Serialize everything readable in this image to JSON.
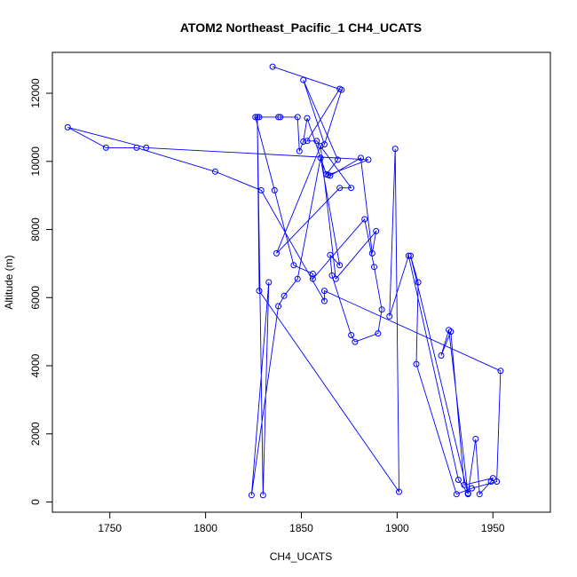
{
  "chart_data": {
    "type": "line",
    "title": "ATOM2 Northeast_Pacific_1 CH4_UCATS",
    "xlabel": "CH4_UCATS",
    "ylabel": "Altitude (m)",
    "xlim": [
      1720,
      1980
    ],
    "ylim": [
      -300,
      13200
    ],
    "x_ticks": [
      1750,
      1800,
      1850,
      1900,
      1950
    ],
    "y_ticks": [
      0,
      2000,
      4000,
      6000,
      8000,
      10000,
      12000
    ],
    "grid": false,
    "legend": "none",
    "colors": {
      "series": "#0000ff",
      "axis": "#000000"
    },
    "series": [
      {
        "x": [
          1835,
          1871,
          1862,
          1851,
          1869,
          1863,
          1853,
          1851,
          1849,
          1848,
          1838,
          1839,
          1828,
          1826,
          1836,
          1846,
          1856,
          1856,
          1883,
          1888,
          1892,
          1890,
          1878,
          1876,
          1866,
          1865,
          1870,
          1860,
          1848,
          1841,
          1838,
          1824,
          1833,
          1830,
          1827,
          1828,
          1901,
          1899,
          1896,
          1906,
          1932,
          1937,
          1937,
          1941,
          1943,
          1949,
          1950,
          1935,
          1928,
          1923,
          1927,
          1937,
          1907,
          1911,
          1910,
          1931,
          1939,
          1952,
          1954,
          1862,
          1862,
          1829,
          1805,
          1764,
          1748,
          1728,
          1769,
          1885,
          1864,
          1865,
          1881,
          1887,
          1889,
          1868,
          1860,
          1837,
          1870,
          1876,
          1858,
          1853,
          1870
        ],
        "y": [
          12780,
          12100,
          10500,
          12390,
          10050,
          9620,
          11270,
          10580,
          10300,
          11300,
          11300,
          11300,
          11300,
          11300,
          9150,
          6950,
          6700,
          6550,
          8300,
          6900,
          5650,
          4950,
          4700,
          4900,
          6650,
          7250,
          6950,
          10100,
          6550,
          6050,
          5750,
          200,
          6450,
          200,
          11300,
          6200,
          300,
          10370,
          5450,
          7230,
          650,
          250,
          250,
          1850,
          230,
          600,
          700,
          500,
          5000,
          4300,
          5050,
          230,
          7230,
          6450,
          4050,
          230,
          400,
          600,
          3850,
          6200,
          5900,
          9150,
          9700,
          10400,
          10400,
          11000,
          10400,
          10050,
          9600,
          9580,
          10100,
          7300,
          7950,
          6550,
          10450,
          7300,
          9220,
          9220,
          10600,
          10600,
          12130
        ]
      }
    ]
  }
}
